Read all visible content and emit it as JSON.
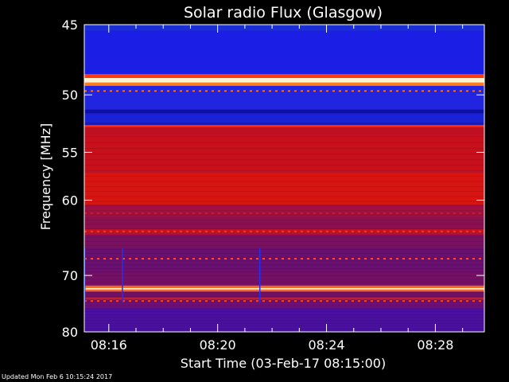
{
  "chart_data": {
    "type": "heatmap",
    "title": "Solar radio Flux (Glasgow)",
    "xlabel": "Start Time (03-Feb-17 08:15:00)",
    "ylabel": "Frequency [MHz]",
    "x_tick_labels": [
      "08:16",
      "08:20",
      "08:24",
      "08:28"
    ],
    "x_ticks_minutes": [
      16,
      20,
      24,
      28
    ],
    "xlim_minutes": [
      15.1,
      29.8
    ],
    "y_tick_labels": [
      "45",
      "50",
      "55",
      "60",
      "70",
      "80"
    ],
    "y_ticks": [
      45,
      50,
      55,
      60,
      70,
      80
    ],
    "ylim": [
      45,
      80
    ],
    "y_scale": "reciprocal",
    "colormap": "blue-red-yellow",
    "bands": [
      {
        "f0": 45.0,
        "f1": 45.4,
        "color": "#1a2fd8"
      },
      {
        "f0": 45.4,
        "f1": 48.4,
        "color": "#1b1fe6"
      },
      {
        "f0": 48.4,
        "f1": 48.7,
        "color": "#ff3a10"
      },
      {
        "f0": 48.7,
        "f1": 49.05,
        "color": "#fff6d0"
      },
      {
        "f0": 49.05,
        "f1": 49.3,
        "color": "#ff7a20"
      },
      {
        "f0": 49.3,
        "f1": 51.2,
        "color": "#2125e0"
      },
      {
        "f0": 51.2,
        "f1": 51.5,
        "color": "#0d10a0"
      },
      {
        "f0": 51.5,
        "f1": 52.3,
        "color": "#1a22d8"
      },
      {
        "f0": 52.3,
        "f1": 52.5,
        "color": "#1a1ab0"
      },
      {
        "f0": 52.5,
        "f1": 52.7,
        "color": "#ff2a10"
      },
      {
        "f0": 52.7,
        "f1": 53.3,
        "color": "#c01020"
      },
      {
        "f0": 53.3,
        "f1": 57.0,
        "color": "#c8101c"
      },
      {
        "f0": 57.0,
        "f1": 60.5,
        "color": "#d81410"
      },
      {
        "f0": 60.5,
        "f1": 62.0,
        "color": "#a01040"
      },
      {
        "f0": 62.0,
        "f1": 63.5,
        "color": "#8a1050"
      },
      {
        "f0": 63.5,
        "f1": 64.2,
        "color": "#c01428"
      },
      {
        "f0": 64.2,
        "f1": 66.0,
        "color": "#7a1060"
      },
      {
        "f0": 66.0,
        "f1": 69.5,
        "color": "#6a1070"
      },
      {
        "f0": 69.5,
        "f1": 71.6,
        "color": "#761066"
      },
      {
        "f0": 71.6,
        "f1": 72.0,
        "color": "#ff6a20"
      },
      {
        "f0": 72.0,
        "f1": 72.3,
        "color": "#ffe8b0"
      },
      {
        "f0": 72.3,
        "f1": 72.6,
        "color": "#ff6a20"
      },
      {
        "f0": 72.6,
        "f1": 73.6,
        "color": "#701068"
      },
      {
        "f0": 73.6,
        "f1": 74.0,
        "color": "#c02030"
      },
      {
        "f0": 74.0,
        "f1": 75.5,
        "color": "#6a1078"
      },
      {
        "f0": 75.5,
        "f1": 80.0,
        "color": "#4a10a0"
      }
    ],
    "dashed_lines": [
      {
        "f": 49.7,
        "color": "#ff6a30"
      },
      {
        "f": 61.5,
        "color": "#c02030"
      },
      {
        "f": 63.8,
        "color": "#ff3020"
      },
      {
        "f": 67.5,
        "color": "#ff5030"
      },
      {
        "f": 74.2,
        "color": "#ff4020"
      }
    ],
    "vertical_lines_minutes": [
      15.12,
      16.5,
      21.55
    ]
  },
  "footer": {
    "updated": "Updated Mon Feb  6 10:15:24 2017"
  }
}
